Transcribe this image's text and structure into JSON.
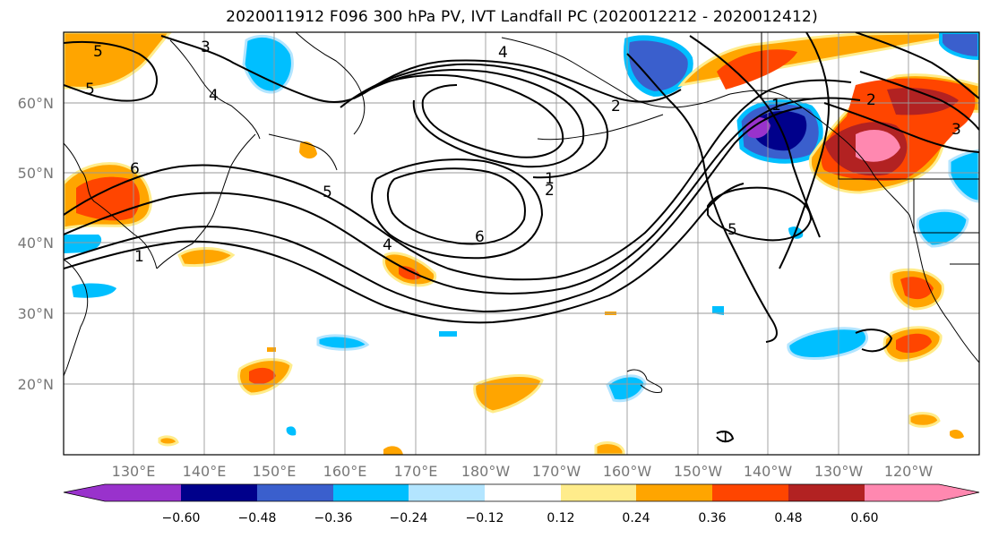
{
  "title": "2020011912 F096 300 hPa PV, IVT Landfall PC (2020012212 - 2020012412)",
  "map": {
    "lat_labels": [
      "60°N",
      "50°N",
      "40°N",
      "30°N",
      "20°N"
    ],
    "lon_labels": [
      "130°E",
      "140°E",
      "150°E",
      "160°E",
      "170°E",
      "180°W",
      "170°W",
      "160°W",
      "150°W",
      "140°W",
      "130°W",
      "120°W"
    ],
    "contour_labels": [
      "5",
      "3",
      "4",
      "6",
      "4",
      "2",
      "1",
      "5",
      "4",
      "6",
      "1",
      "2",
      "5",
      "2",
      "3",
      "1",
      "1",
      "5"
    ],
    "fill_colors": {
      "neg_strong": "#1a1a8c",
      "neg_medium": "#3a5fcd",
      "neg_light": "#00bfff",
      "neg_faint": "#b3e5ff",
      "pos_faint": "#ffec8b",
      "pos_light": "#ffa500",
      "pos_medium": "#ff4500",
      "pos_strong": "#b22222",
      "pos_max": "#ff88b0",
      "neg_max": "#9932cc"
    }
  },
  "colorbar": {
    "colors": [
      "#9932cc",
      "#00008b",
      "#3a5fcd",
      "#00bfff",
      "#b3e5ff",
      "#ffffff",
      "#ffec8b",
      "#ffa500",
      "#ff4500",
      "#b22222",
      "#ff88b0"
    ],
    "tick_labels": [
      "−0.60",
      "−0.48",
      "−0.36",
      "−0.24",
      "−0.12",
      "0.12",
      "0.24",
      "0.36",
      "0.48",
      "0.60"
    ]
  }
}
